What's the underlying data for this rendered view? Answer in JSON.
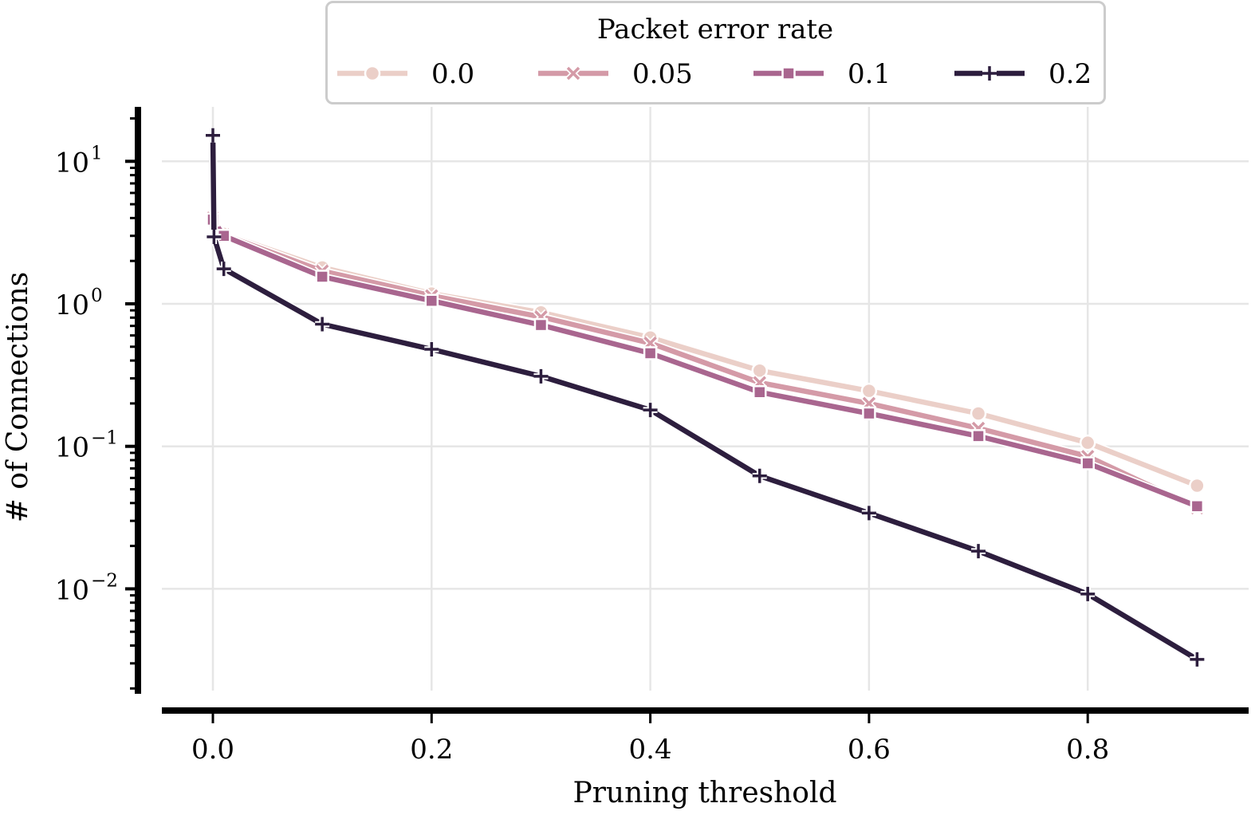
{
  "chart_data": {
    "type": "line",
    "title": "",
    "xlabel": "Pruning threshold",
    "ylabel": "# of Connections",
    "yscale": "log",
    "xlim": [
      -0.05,
      0.95
    ],
    "ylim": [
      0.0022,
      22
    ],
    "grid": true,
    "x_ticks": [
      0.0,
      0.2,
      0.4,
      0.6,
      0.8
    ],
    "x_tick_labels": [
      "0.0",
      "0.2",
      "0.4",
      "0.6",
      "0.8"
    ],
    "y_ticks": [
      10,
      1,
      0.1,
      0.01
    ],
    "y_tick_labels": [
      {
        "base": "10",
        "exp": "1"
      },
      {
        "base": "10",
        "exp": "0"
      },
      {
        "base": "10",
        "exp": "−1"
      },
      {
        "base": "10",
        "exp": "−2"
      }
    ],
    "legend": {
      "title": "Packet error rate",
      "position": "top-center"
    },
    "series": [
      {
        "name": "0.0",
        "color": "#ebcfc8",
        "marker": "circle",
        "x": [
          0.0,
          0.01,
          0.1,
          0.2,
          0.3,
          0.4,
          0.5,
          0.6,
          0.7,
          0.8,
          0.9
        ],
        "values": [
          4.0,
          3.1,
          1.8,
          1.18,
          0.87,
          0.58,
          0.34,
          0.245,
          0.17,
          0.106,
          0.053
        ]
      },
      {
        "name": "0.05",
        "color": "#d49aa7",
        "marker": "x",
        "x": [
          0.0,
          0.01,
          0.1,
          0.2,
          0.3,
          0.4,
          0.5,
          0.6,
          0.7,
          0.8,
          0.9
        ],
        "values": [
          4.0,
          3.05,
          1.7,
          1.14,
          0.81,
          0.53,
          0.28,
          0.2,
          0.134,
          0.085,
          0.037
        ]
      },
      {
        "name": "0.1",
        "color": "#a9668f",
        "marker": "square",
        "x": [
          0.0,
          0.01,
          0.1,
          0.2,
          0.3,
          0.4,
          0.5,
          0.6,
          0.7,
          0.8,
          0.9
        ],
        "values": [
          3.9,
          3.0,
          1.55,
          1.05,
          0.71,
          0.45,
          0.24,
          0.17,
          0.118,
          0.076,
          0.038
        ]
      },
      {
        "name": "0.2",
        "color": "#2d1e3e",
        "marker": "plus",
        "x": [
          0.0,
          0.001,
          0.01,
          0.1,
          0.2,
          0.3,
          0.4,
          0.5,
          0.6,
          0.7,
          0.8,
          0.9
        ],
        "values": [
          15.2,
          2.95,
          1.76,
          0.72,
          0.48,
          0.31,
          0.18,
          0.062,
          0.034,
          0.0184,
          0.0092,
          0.0032
        ]
      }
    ]
  }
}
